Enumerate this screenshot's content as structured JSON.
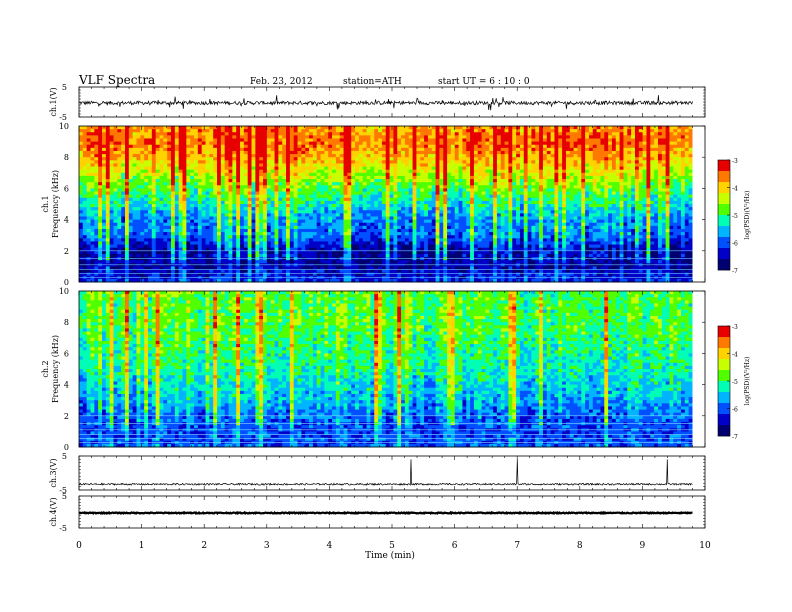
{
  "header": {
    "title": "VLF  Spectra",
    "date": "Feb. 23, 2012",
    "station": "station=ATH",
    "start": "start  UT  =   6 : 10 : 0"
  },
  "colors": {
    "colormap": [
      "#000070",
      "#0000c8",
      "#0050ff",
      "#00b4ff",
      "#00ffb4",
      "#50ff00",
      "#c8ff00",
      "#ffd200",
      "#ff7800",
      "#e60000"
    ]
  },
  "chart_data": [
    {
      "type": "line",
      "panel": "ch1-waveform",
      "ylabel": "ch.1(V)",
      "ylim": [
        -5,
        5
      ],
      "yticks": [
        "5",
        "-5"
      ],
      "xlim": [
        0,
        9.8
      ],
      "baseline": -0.3,
      "noise_amplitude": 0.6,
      "spike_amplitude": 2.2
    },
    {
      "type": "heatmap",
      "panel": "ch1-spectrogram",
      "ylabel": "ch.1",
      "ylabel2": "Frequency  (kHz)",
      "ylim": [
        0,
        10
      ],
      "yticks": [
        "0",
        "2",
        "4",
        "6",
        "8",
        "10"
      ],
      "xlim": [
        0,
        9.8
      ],
      "colorbar_label": "log(PSD)(V²/Hz)",
      "colorbar_ticks": [
        "-3",
        "-4",
        "-5",
        "-6",
        "-7"
      ],
      "colorbar_range": [
        -7,
        -3
      ],
      "profile_khz": [
        0,
        1,
        2,
        3,
        4,
        5,
        6,
        7,
        8,
        9,
        10
      ],
      "profile_logpsd": [
        -6.2,
        -6.6,
        -6.6,
        -5.9,
        -5.8,
        -5.3,
        -4.9,
        -4.4,
        -3.9,
        -3.6,
        -3.8
      ]
    },
    {
      "type": "heatmap",
      "panel": "ch2-spectrogram",
      "ylabel": "ch.2",
      "ylabel2": "Frequency  (kHz)",
      "ylim": [
        0,
        10
      ],
      "yticks": [
        "0",
        "2",
        "4",
        "6",
        "8",
        "10"
      ],
      "xlim": [
        0,
        9.8
      ],
      "colorbar_label": "log(PSD)(V²/Hz)",
      "colorbar_ticks": [
        "-3",
        "-4",
        "-5",
        "-6",
        "-7"
      ],
      "colorbar_range": [
        -7,
        -3
      ],
      "profile_khz": [
        0,
        1,
        2,
        3,
        4,
        5,
        6,
        7,
        8,
        9,
        10
      ],
      "profile_logpsd": [
        -6.0,
        -6.1,
        -5.9,
        -5.6,
        -5.4,
        -5.2,
        -5.1,
        -5.0,
        -4.9,
        -4.9,
        -4.9
      ]
    },
    {
      "type": "line",
      "panel": "ch3-waveform",
      "ylabel": "ch.3(V)",
      "ylim": [
        -5,
        5
      ],
      "yticks": [
        "5",
        "-5"
      ],
      "xlim": [
        0,
        9.8
      ],
      "baseline": -3.3,
      "noise_amplitude": 0.25,
      "spikes_min": [
        5.3,
        7.0,
        9.4
      ],
      "spike_top": 4.0
    },
    {
      "type": "line",
      "panel": "ch4-waveform",
      "ylabel": "ch.4(V)",
      "ylim": [
        -5,
        5
      ],
      "yticks": [
        "5",
        "-5"
      ],
      "xlim": [
        0,
        9.8
      ],
      "baseline": -0.3,
      "noise_amplitude": 0.15
    }
  ],
  "xaxis": {
    "label": "Time  (min)",
    "range": [
      0,
      10
    ],
    "ticks": [
      "0",
      "1",
      "2",
      "3",
      "4",
      "5",
      "6",
      "7",
      "8",
      "9",
      "10"
    ]
  }
}
